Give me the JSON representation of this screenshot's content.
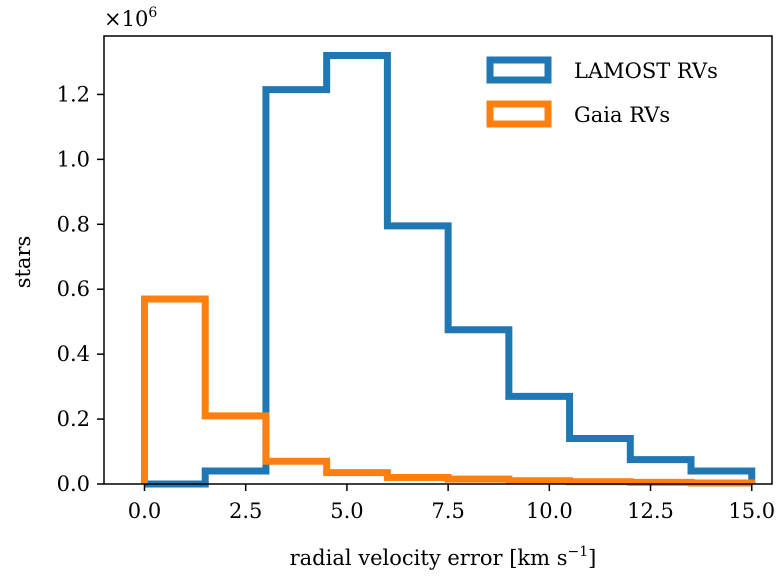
{
  "chart_data": {
    "type": "histogram",
    "x_label": "radial velocity error [km s",
    "x_label_exponent": "−1",
    "x_label_suffix": "]",
    "y_label": "stars",
    "y_multiplier": "×10",
    "y_multiplier_exponent": "6",
    "xlim": [
      -1.0,
      15.5
    ],
    "ylim": [
      0,
      1.38
    ],
    "x_ticks": [
      {
        "value": 0.0,
        "label": "0.0"
      },
      {
        "value": 2.5,
        "label": "2.5"
      },
      {
        "value": 5.0,
        "label": "5.0"
      },
      {
        "value": 7.5,
        "label": "7.5"
      },
      {
        "value": 10.0,
        "label": "10.0"
      },
      {
        "value": 12.5,
        "label": "12.5"
      },
      {
        "value": 15.0,
        "label": "15.0"
      }
    ],
    "y_ticks": [
      {
        "value": 0.0,
        "label": "0.0"
      },
      {
        "value": 0.2,
        "label": "0.2"
      },
      {
        "value": 0.4,
        "label": "0.4"
      },
      {
        "value": 0.6,
        "label": "0.6"
      },
      {
        "value": 0.8,
        "label": "0.8"
      },
      {
        "value": 1.0,
        "label": "1.0"
      },
      {
        "value": 1.2,
        "label": "1.2"
      }
    ],
    "bin_edges": [
      0,
      1.5,
      3.0,
      4.5,
      6.0,
      7.5,
      9.0,
      10.5,
      12.0,
      13.5,
      15.0
    ],
    "series": [
      {
        "name": "LAMOST RVs",
        "color": "#1f77b4",
        "values": [
          0.0,
          0.04,
          1.215,
          1.32,
          0.795,
          0.475,
          0.27,
          0.14,
          0.075,
          0.04
        ]
      },
      {
        "name": "Gaia RVs",
        "color": "#ff7f0e",
        "values": [
          0.57,
          0.21,
          0.07,
          0.035,
          0.02,
          0.015,
          0.01,
          0.007,
          0.005,
          0.003
        ]
      }
    ],
    "legend_position": "top-right"
  }
}
